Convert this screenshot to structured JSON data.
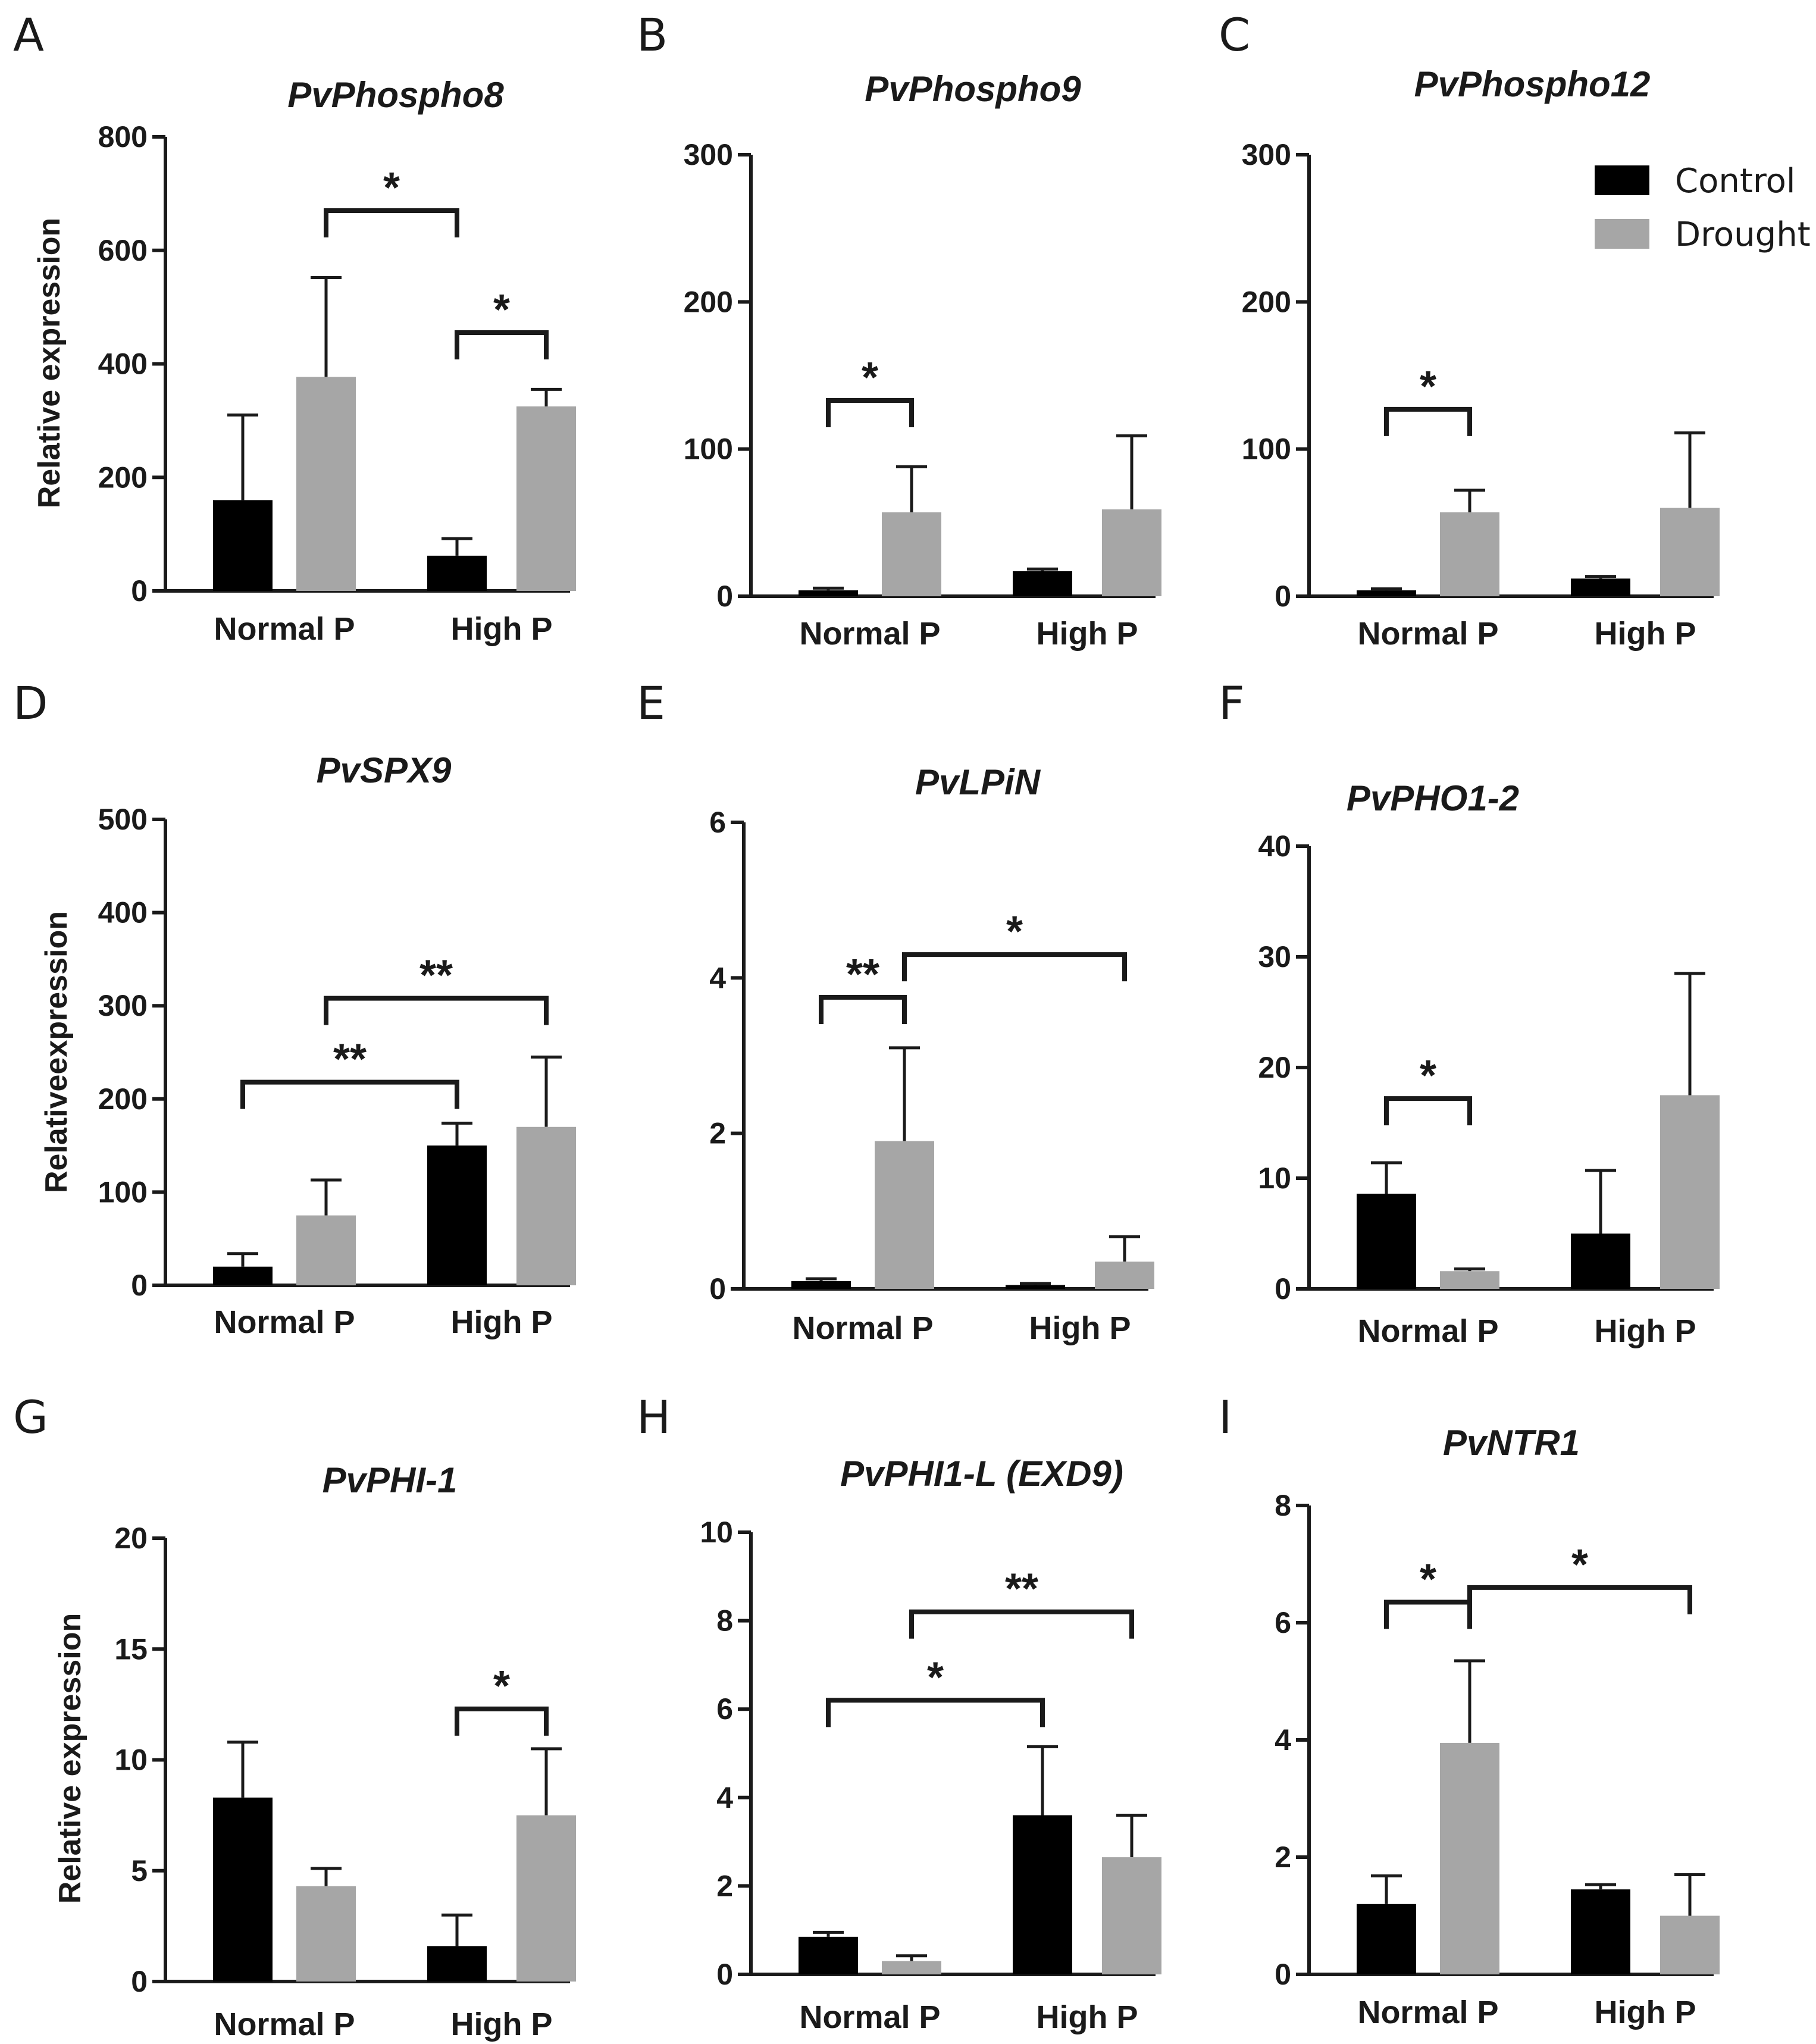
{
  "legend": {
    "items": [
      {
        "name": "Control",
        "color": "#000000"
      },
      {
        "name": "Drought",
        "color": "#a6a6a6"
      }
    ]
  },
  "chart_data": [
    {
      "panel": "A",
      "type": "bar",
      "title": "PvPhospho8",
      "ylabel": "Relative expression",
      "categories": [
        "Normal P",
        "High P"
      ],
      "ylim": [
        0,
        800
      ],
      "yticks": [
        0,
        200,
        400,
        600,
        800
      ],
      "series": [
        {
          "name": "Control",
          "values": [
            160,
            62
          ],
          "errors": [
            150,
            30
          ]
        },
        {
          "name": "Drought",
          "values": [
            377,
            325
          ],
          "errors": [
            175,
            30
          ]
        }
      ],
      "significance": [
        {
          "label": "*",
          "from": [
            0,
            "Drought"
          ],
          "to": [
            1,
            "Control"
          ],
          "level": 670
        },
        {
          "label": "*",
          "from": [
            1,
            "Control"
          ],
          "to": [
            1,
            "Drought"
          ],
          "level": 455
        }
      ]
    },
    {
      "panel": "B",
      "type": "bar",
      "title": "PvPhospho9",
      "ylabel": "",
      "categories": [
        "Normal P",
        "High P"
      ],
      "ylim": [
        0,
        300
      ],
      "yticks": [
        0,
        100,
        200,
        300
      ],
      "series": [
        {
          "name": "Control",
          "values": [
            4,
            17
          ],
          "errors": [
            1.5,
            1.5
          ]
        },
        {
          "name": "Drought",
          "values": [
            57,
            59
          ],
          "errors": [
            31,
            50
          ]
        }
      ],
      "significance": [
        {
          "label": "*",
          "from": [
            0,
            "Control"
          ],
          "to": [
            0,
            "Drought"
          ],
          "level": 133
        }
      ]
    },
    {
      "panel": "C",
      "type": "bar",
      "title": "PvPhospho12",
      "ylabel": "",
      "categories": [
        "Normal P",
        "High P"
      ],
      "ylim": [
        0,
        300
      ],
      "yticks": [
        0,
        100,
        200,
        300
      ],
      "series": [
        {
          "name": "Control",
          "values": [
            4,
            12
          ],
          "errors": [
            1,
            1.5
          ]
        },
        {
          "name": "Drought",
          "values": [
            57,
            60
          ],
          "errors": [
            15,
            51
          ]
        }
      ],
      "significance": [
        {
          "label": "*",
          "from": [
            0,
            "Control"
          ],
          "to": [
            0,
            "Drought"
          ],
          "level": 127
        }
      ]
    },
    {
      "panel": "D",
      "type": "bar",
      "title": "PvSPX9",
      "ylabel": "Relativeexpression",
      "categories": [
        "Normal P",
        "High P"
      ],
      "ylim": [
        0,
        500
      ],
      "yticks": [
        0,
        100,
        200,
        300,
        400,
        500
      ],
      "series": [
        {
          "name": "Control",
          "values": [
            20,
            150
          ],
          "errors": [
            14,
            24
          ]
        },
        {
          "name": "Drought",
          "values": [
            75,
            170
          ],
          "errors": [
            38,
            75
          ]
        }
      ],
      "significance": [
        {
          "label": "**",
          "from": [
            0,
            "Control"
          ],
          "to": [
            1,
            "Control"
          ],
          "level": 218
        },
        {
          "label": "**",
          "from": [
            0,
            "Drought"
          ],
          "to": [
            1,
            "Drought"
          ],
          "level": 308
        }
      ]
    },
    {
      "panel": "E",
      "type": "bar",
      "title": "PvLPiN",
      "ylabel": "",
      "categories": [
        "Normal P",
        "High P"
      ],
      "ylim": [
        0,
        6
      ],
      "yticks": [
        0,
        2,
        4,
        6
      ],
      "series": [
        {
          "name": "Control",
          "values": [
            0.1,
            0.05
          ],
          "errors": [
            0.03,
            0.02
          ]
        },
        {
          "name": "Drought",
          "values": [
            1.9,
            0.35
          ],
          "errors": [
            1.2,
            0.32
          ]
        }
      ],
      "significance": [
        {
          "label": "**",
          "from": [
            0,
            "Control"
          ],
          "to": [
            0,
            "Drought"
          ],
          "level": 3.75
        },
        {
          "label": "*",
          "from": [
            0,
            "Drought"
          ],
          "to": [
            1,
            "Drought"
          ],
          "level": 4.3
        }
      ]
    },
    {
      "panel": "F",
      "type": "bar",
      "title": "PvPHO1-2",
      "ylabel": "",
      "categories": [
        "Normal P",
        "High P"
      ],
      "ylim": [
        0,
        40
      ],
      "yticks": [
        0,
        10,
        20,
        30,
        40
      ],
      "series": [
        {
          "name": "Control",
          "values": [
            8.6,
            5
          ],
          "errors": [
            2.8,
            5.7
          ]
        },
        {
          "name": "Drought",
          "values": [
            1.6,
            17.5
          ],
          "errors": [
            0.2,
            11
          ]
        }
      ],
      "significance": [
        {
          "label": "*",
          "from": [
            0,
            "Control"
          ],
          "to": [
            0,
            "Drought"
          ],
          "level": 17.2
        }
      ]
    },
    {
      "panel": "G",
      "type": "bar",
      "title": "PvPHI-1",
      "ylabel": "Relative expression",
      "categories": [
        "Normal P",
        "High P"
      ],
      "ylim": [
        0,
        20
      ],
      "yticks": [
        0,
        5,
        10,
        15,
        20
      ],
      "series": [
        {
          "name": "Control",
          "values": [
            8.3,
            1.6
          ],
          "errors": [
            2.5,
            1.4
          ]
        },
        {
          "name": "Drought",
          "values": [
            4.3,
            7.5
          ],
          "errors": [
            0.8,
            3
          ]
        }
      ],
      "significance": [
        {
          "label": "*",
          "from": [
            1,
            "Control"
          ],
          "to": [
            1,
            "Drought"
          ],
          "level": 12.3
        }
      ]
    },
    {
      "panel": "H",
      "type": "bar",
      "title": "PvPHI1-L (EXD9)",
      "ylabel": "",
      "categories": [
        "Normal P",
        "High P"
      ],
      "ylim": [
        0,
        10
      ],
      "yticks": [
        0,
        2,
        4,
        6,
        8,
        10
      ],
      "series": [
        {
          "name": "Control",
          "values": [
            0.85,
            3.6
          ],
          "errors": [
            0.1,
            1.55
          ]
        },
        {
          "name": "Drought",
          "values": [
            0.3,
            2.65
          ],
          "errors": [
            0.12,
            0.95
          ]
        }
      ],
      "significance": [
        {
          "label": "*",
          "from": [
            0,
            "Control"
          ],
          "to": [
            1,
            "Control"
          ],
          "level": 6.2
        },
        {
          "label": "**",
          "from": [
            0,
            "Drought"
          ],
          "to": [
            1,
            "Drought"
          ],
          "level": 8.2
        }
      ]
    },
    {
      "panel": "I",
      "type": "bar",
      "title": "PvNTR1",
      "ylabel": "",
      "categories": [
        "Normal P",
        "High P"
      ],
      "ylim": [
        0,
        8
      ],
      "yticks": [
        0,
        2,
        4,
        6,
        8
      ],
      "series": [
        {
          "name": "Control",
          "values": [
            1.2,
            1.45
          ],
          "errors": [
            0.48,
            0.08
          ]
        },
        {
          "name": "Drought",
          "values": [
            3.95,
            1.0
          ],
          "errors": [
            1.4,
            0.7
          ]
        }
      ],
      "significance": [
        {
          "label": "*",
          "from": [
            0,
            "Control"
          ],
          "to": [
            0,
            "Drought"
          ],
          "level": 6.35
        },
        {
          "label": "*",
          "from": [
            0,
            "Drought"
          ],
          "to": [
            1,
            "Drought"
          ],
          "level": 6.6
        }
      ]
    }
  ]
}
